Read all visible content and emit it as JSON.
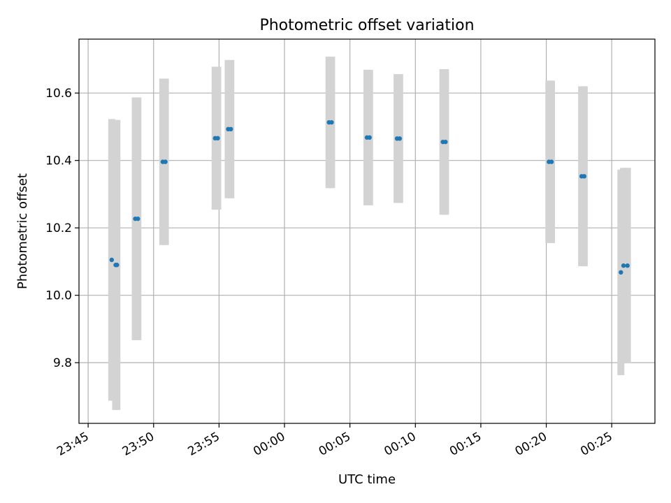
{
  "chart_data": {
    "type": "scatter",
    "title": "Photometric offset variation",
    "xlabel": "UTC time",
    "ylabel": "Photometric offset",
    "grid": true,
    "legend": "none",
    "x_ticks": [
      "23:45",
      "23:50",
      "23:55",
      "00:00",
      "00:05",
      "00:10",
      "00:15",
      "00:20",
      "00:25"
    ],
    "x_tick_minutes": [
      -15,
      -10,
      -5,
      0,
      5,
      10,
      15,
      20,
      25
    ],
    "xlim_minutes": [
      -15.7,
      28.3
    ],
    "y_ticks": [
      "9.8",
      "10.0",
      "10.2",
      "10.4",
      "10.6"
    ],
    "ylim": [
      9.62,
      10.76
    ],
    "colors": {
      "point": "#1f77b4",
      "errorbar": "#d3d3d3",
      "grid": "#b0b0b0"
    },
    "points": [
      {
        "t": -13.2,
        "y": 10.105,
        "err": 0.418
      },
      {
        "t": -12.9,
        "y": 10.09,
        "err": 0.43
      },
      {
        "t": -12.8,
        "y": 10.09,
        "err": 0.43
      },
      {
        "t": -11.4,
        "y": 10.227,
        "err": 0.36
      },
      {
        "t": -11.2,
        "y": 10.227,
        "err": 0.36
      },
      {
        "t": -9.3,
        "y": 10.396,
        "err": 0.247
      },
      {
        "t": -9.1,
        "y": 10.396,
        "err": 0.247
      },
      {
        "t": -5.3,
        "y": 10.466,
        "err": 0.212
      },
      {
        "t": -5.1,
        "y": 10.466,
        "err": 0.212
      },
      {
        "t": -4.3,
        "y": 10.493,
        "err": 0.205
      },
      {
        "t": -4.1,
        "y": 10.493,
        "err": 0.205
      },
      {
        "t": 3.4,
        "y": 10.513,
        "err": 0.195
      },
      {
        "t": 3.6,
        "y": 10.513,
        "err": 0.195
      },
      {
        "t": 6.3,
        "y": 10.468,
        "err": 0.201
      },
      {
        "t": 6.5,
        "y": 10.468,
        "err": 0.201
      },
      {
        "t": 8.6,
        "y": 10.465,
        "err": 0.191
      },
      {
        "t": 8.8,
        "y": 10.465,
        "err": 0.191
      },
      {
        "t": 12.1,
        "y": 10.455,
        "err": 0.216
      },
      {
        "t": 12.3,
        "y": 10.455,
        "err": 0.216
      },
      {
        "t": 20.2,
        "y": 10.396,
        "err": 0.241
      },
      {
        "t": 20.4,
        "y": 10.396,
        "err": 0.241
      },
      {
        "t": 22.7,
        "y": 10.353,
        "err": 0.267
      },
      {
        "t": 22.9,
        "y": 10.353,
        "err": 0.267
      },
      {
        "t": 25.7,
        "y": 10.068,
        "err": 0.305
      },
      {
        "t": 25.9,
        "y": 10.088,
        "err": 0.29
      },
      {
        "t": 26.2,
        "y": 10.088,
        "err": 0.29
      }
    ]
  }
}
